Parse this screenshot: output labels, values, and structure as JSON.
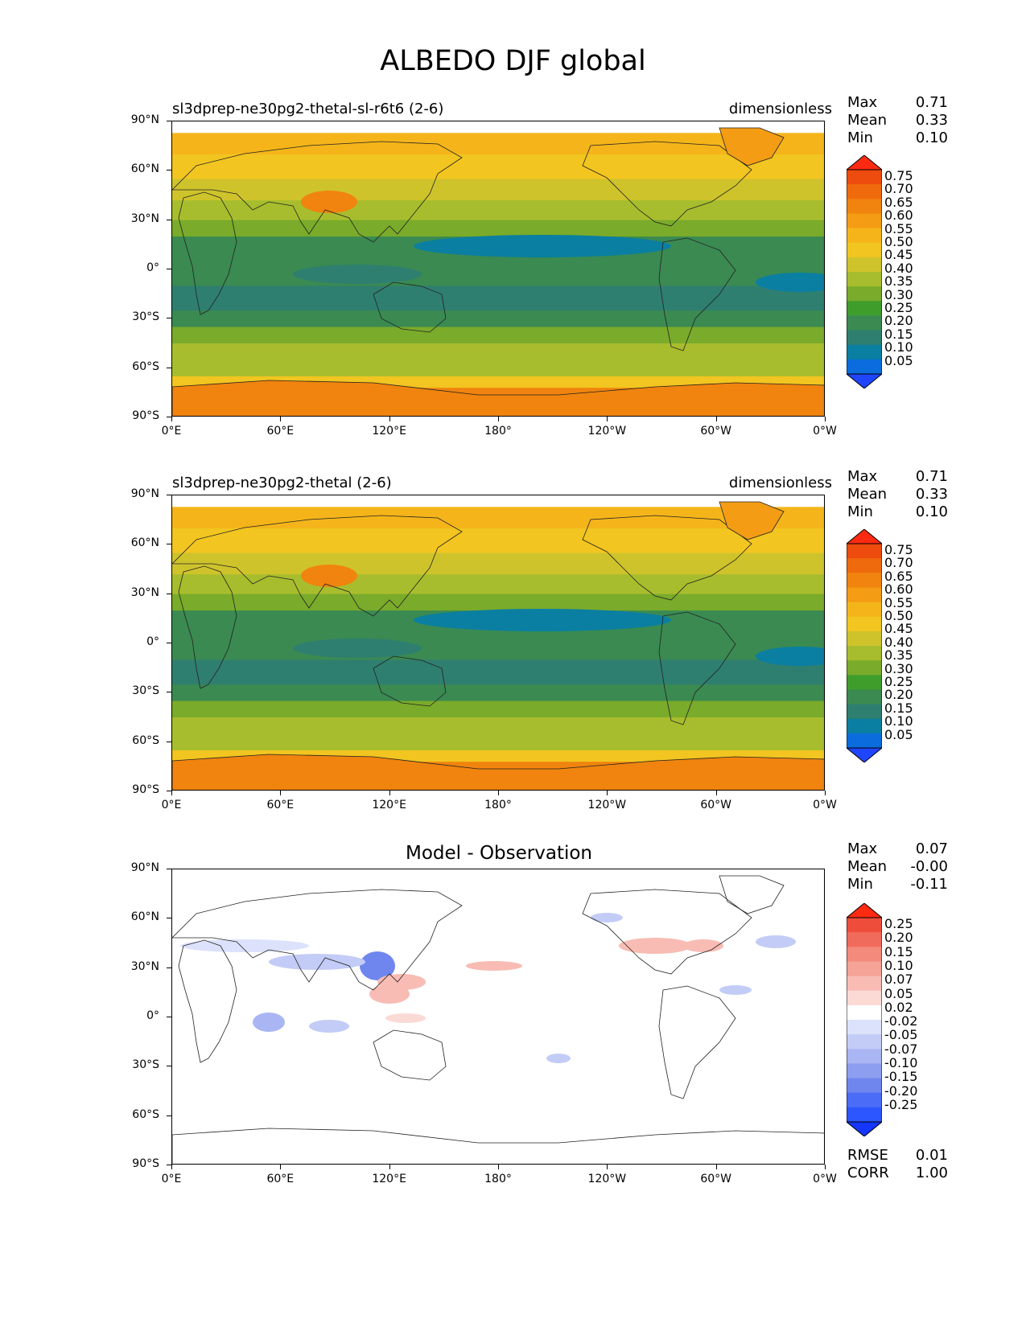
{
  "title": "ALBEDO DJF global",
  "axes": {
    "y_ticks": [
      "90°N",
      "60°N",
      "30°N",
      "0°",
      "30°S",
      "60°S",
      "90°S"
    ],
    "x_ticks": [
      "0°E",
      "60°E",
      "120°E",
      "180°",
      "120°W",
      "60°W",
      "0°W"
    ]
  },
  "colors": {
    "seq": [
      "#1f45ff",
      "#0b6ddd",
      "#0b7fa1",
      "#2f7f70",
      "#3a8a52",
      "#3f9d2c",
      "#7aab2a",
      "#a8bd2d",
      "#cfc32c",
      "#f2c520",
      "#f5b51a",
      "#f39c14",
      "#f0840e",
      "#ef6a0d",
      "#ee4b0e",
      "#ff2a12"
    ],
    "div": [
      "#1436ff",
      "#2c56ff",
      "#4a6cf6",
      "#6f86ee",
      "#8d9ef0",
      "#a9b6f3",
      "#c3ccf6",
      "#dce2fb",
      "#ffffff",
      "#fbdad6",
      "#f8bcb4",
      "#f5a297",
      "#f48a7c",
      "#f16b5c",
      "#ef4d3b",
      "#ff2a12"
    ]
  },
  "panels": [
    {
      "title_left": "sl3dprep-ne30pg2-thetal-sl-r6t6 (2-6)",
      "title_right": "dimensionless",
      "stats": {
        "max_label": "Max",
        "max": "0.71",
        "mean_label": "Mean",
        "mean": "0.33",
        "min_label": "Min",
        "min": "0.10"
      },
      "colorbar_levels": [
        "0.75",
        "0.70",
        "0.65",
        "0.60",
        "0.55",
        "0.50",
        "0.45",
        "0.40",
        "0.35",
        "0.30",
        "0.25",
        "0.20",
        "0.15",
        "0.10",
        "0.05"
      ]
    },
    {
      "title_left": "sl3dprep-ne30pg2-thetal (2-6)",
      "title_right": "dimensionless",
      "stats": {
        "max_label": "Max",
        "max": "0.71",
        "mean_label": "Mean",
        "mean": "0.33",
        "min_label": "Min",
        "min": "0.10"
      },
      "colorbar_levels": [
        "0.75",
        "0.70",
        "0.65",
        "0.60",
        "0.55",
        "0.50",
        "0.45",
        "0.40",
        "0.35",
        "0.30",
        "0.25",
        "0.20",
        "0.15",
        "0.10",
        "0.05"
      ]
    },
    {
      "title_center": "Model - Observation",
      "stats": {
        "max_label": "Max",
        "max": "0.07",
        "mean_label": "Mean",
        "mean": "-0.00",
        "min_label": "Min",
        "min": "-0.11"
      },
      "colorbar_levels": [
        "0.25",
        "0.20",
        "0.15",
        "0.10",
        "0.07",
        "0.05",
        "0.02",
        "-0.02",
        "-0.05",
        "-0.07",
        "-0.10",
        "-0.15",
        "-0.20",
        "-0.25"
      ],
      "footer": {
        "rmse_label": "RMSE",
        "rmse": "0.01",
        "corr_label": "CORR",
        "corr": "1.00"
      }
    }
  ],
  "chart_data": [
    {
      "type": "heatmap",
      "title": "sl3dprep-ne30pg2-thetal-sl-r6t6 (2-6)",
      "units": "dimensionless",
      "x_range": [
        "0°E",
        "0°W"
      ],
      "y_range": [
        "90°S",
        "90°N"
      ],
      "levels": [
        0.05,
        0.1,
        0.15,
        0.2,
        0.25,
        0.3,
        0.35,
        0.4,
        0.45,
        0.5,
        0.55,
        0.6,
        0.65,
        0.7,
        0.75
      ],
      "max": 0.71,
      "mean": 0.33,
      "min": 0.1
    },
    {
      "type": "heatmap",
      "title": "sl3dprep-ne30pg2-thetal (2-6)",
      "units": "dimensionless",
      "x_range": [
        "0°E",
        "0°W"
      ],
      "y_range": [
        "90°S",
        "90°N"
      ],
      "levels": [
        0.05,
        0.1,
        0.15,
        0.2,
        0.25,
        0.3,
        0.35,
        0.4,
        0.45,
        0.5,
        0.55,
        0.6,
        0.65,
        0.7,
        0.75
      ],
      "max": 0.71,
      "mean": 0.33,
      "min": 0.1
    },
    {
      "type": "heatmap",
      "title": "Model - Observation",
      "x_range": [
        "0°E",
        "0°W"
      ],
      "y_range": [
        "90°S",
        "90°N"
      ],
      "levels": [
        -0.25,
        -0.2,
        -0.15,
        -0.1,
        -0.07,
        -0.05,
        -0.02,
        0.02,
        0.05,
        0.07,
        0.1,
        0.15,
        0.2,
        0.25
      ],
      "max": 0.07,
      "mean": -0.0,
      "min": -0.11,
      "rmse": 0.01,
      "corr": 1.0
    }
  ]
}
